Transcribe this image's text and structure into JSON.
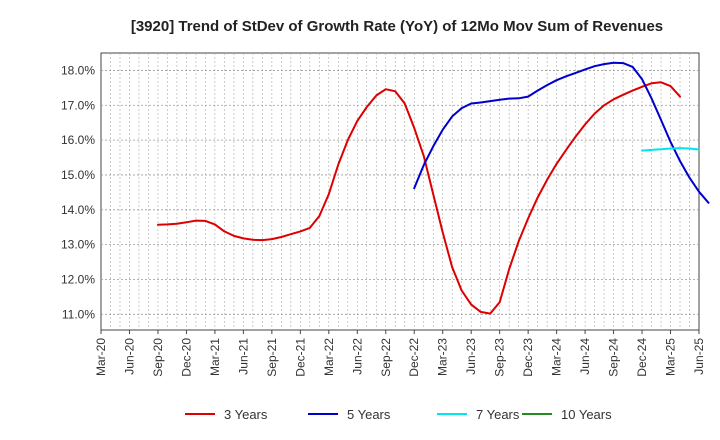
{
  "chart_data": {
    "type": "line",
    "title": "[3920]  Trend of StDev of Growth Rate (YoY) of 12Mo Mov Sum of Revenues",
    "xlabel": "",
    "ylabel": "",
    "x_ticks": [
      "Mar-20",
      "Jun-20",
      "Sep-20",
      "Dec-20",
      "Mar-21",
      "Jun-21",
      "Sep-21",
      "Dec-21",
      "Mar-22",
      "Jun-22",
      "Sep-22",
      "Dec-22",
      "Mar-23",
      "Jun-23",
      "Sep-23",
      "Dec-23",
      "Mar-24",
      "Jun-24",
      "Sep-24",
      "Dec-24",
      "Mar-25",
      "Jun-25"
    ],
    "y_ticks": [
      "11.0%",
      "12.0%",
      "13.0%",
      "14.0%",
      "15.0%",
      "16.0%",
      "17.0%",
      "18.0%"
    ],
    "y_tick_values": [
      11,
      12,
      13,
      14,
      15,
      16,
      17,
      18
    ],
    "xlim": [
      0,
      63
    ],
    "ylim": [
      10.55,
      18.5
    ],
    "grid": true,
    "legend_position": "bottom",
    "series": [
      {
        "name": "3 Years",
        "color": "#dd0000",
        "start_index": 6,
        "values": [
          13.57,
          13.58,
          13.6,
          13.64,
          13.69,
          13.68,
          13.58,
          13.38,
          13.25,
          13.18,
          13.14,
          13.13,
          13.16,
          13.22,
          13.3,
          13.38,
          13.48,
          13.82,
          14.45,
          15.3,
          16.0,
          16.55,
          16.95,
          17.28,
          17.46,
          17.4,
          17.05,
          16.35,
          15.55,
          14.45,
          13.35,
          12.35,
          11.68,
          11.28,
          11.07,
          11.02,
          11.35,
          12.3,
          13.1,
          13.75,
          14.35,
          14.86,
          15.32,
          15.72,
          16.1,
          16.45,
          16.76,
          17.0,
          17.17,
          17.3,
          17.42,
          17.53,
          17.63,
          17.66,
          17.55,
          17.25
        ]
      },
      {
        "name": "5 Years",
        "color": "#0000cc",
        "start_index": 33,
        "values": [
          14.62,
          15.28,
          15.82,
          16.3,
          16.68,
          16.92,
          17.05,
          17.08,
          17.12,
          17.16,
          17.19,
          17.2,
          17.25,
          17.42,
          17.58,
          17.72,
          17.83,
          17.93,
          18.03,
          18.12,
          18.18,
          18.22,
          18.21,
          18.1,
          17.75,
          17.2,
          16.58,
          15.95,
          15.4,
          14.92,
          14.52,
          14.2
        ]
      },
      {
        "name": "7 Years",
        "color": "#00e5ee",
        "start_index": 57,
        "values": [
          15.7,
          15.72,
          15.74,
          15.76,
          15.77,
          15.76,
          15.73
        ]
      },
      {
        "name": "10 Years",
        "color": "#228b22",
        "start_index": 0,
        "values": []
      }
    ]
  }
}
